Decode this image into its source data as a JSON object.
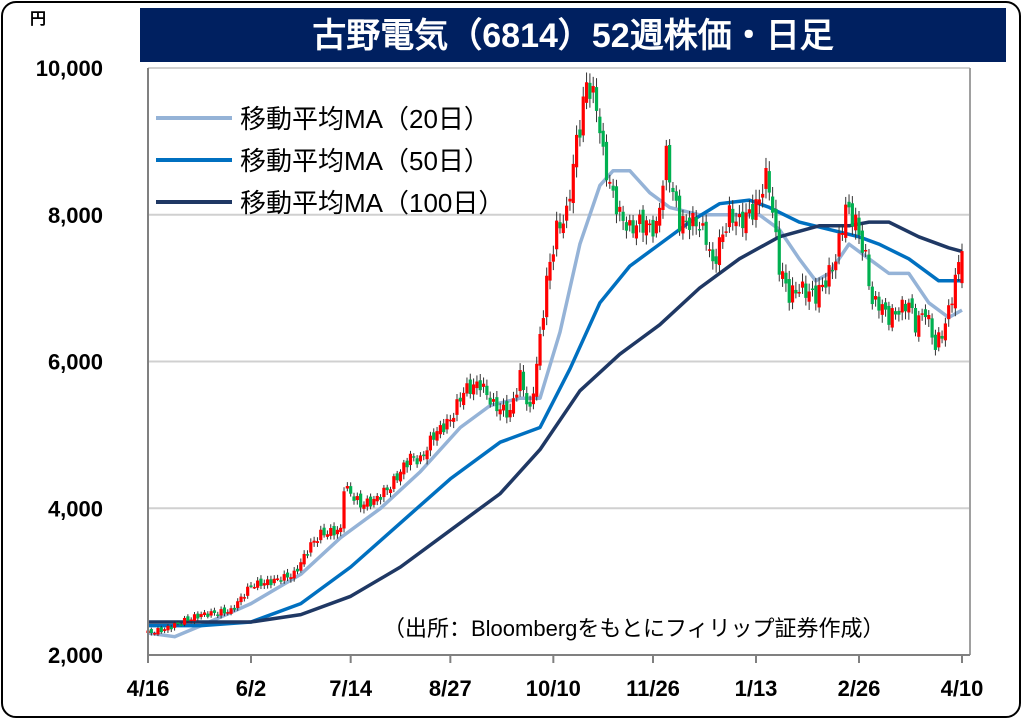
{
  "chart_data": {
    "type": "candlestick",
    "title": "古野電気（6814）52週株価・日足",
    "ylabel": "円",
    "ylim": [
      2000,
      10000
    ],
    "yticks": [
      2000,
      4000,
      6000,
      8000,
      10000
    ],
    "ytick_labels": [
      "2,000",
      "4,000",
      "6,000",
      "8,000",
      "10,000"
    ],
    "x_unit": "trading day index",
    "xlim": [
      0,
      245
    ],
    "xticks": [
      {
        "day": 0,
        "label": "4/16"
      },
      {
        "day": 31,
        "label": "6/2"
      },
      {
        "day": 61,
        "label": "7/14"
      },
      {
        "day": 91,
        "label": "8/27"
      },
      {
        "day": 122,
        "label": "10/10"
      },
      {
        "day": 152,
        "label": "11/26"
      },
      {
        "day": 183,
        "label": "1/13"
      },
      {
        "day": 214,
        "label": "2/26"
      },
      {
        "day": 245,
        "label": "4/10"
      }
    ],
    "grid": "horizontal",
    "legend_position": "top-left",
    "up_color": "#ff0000",
    "down_color": "#00b050",
    "price_close_keypoints": [
      [
        0,
        2300
      ],
      [
        5,
        2350
      ],
      [
        10,
        2450
      ],
      [
        16,
        2550
      ],
      [
        25,
        2600
      ],
      [
        31,
        2950
      ],
      [
        37,
        3000
      ],
      [
        44,
        3100
      ],
      [
        49,
        3500
      ],
      [
        52,
        3650
      ],
      [
        58,
        3700
      ],
      [
        59,
        4300
      ],
      [
        64,
        4050
      ],
      [
        68,
        4100
      ],
      [
        73,
        4300
      ],
      [
        79,
        4700
      ],
      [
        82,
        4650
      ],
      [
        86,
        5000
      ],
      [
        91,
        5200
      ],
      [
        95,
        5600
      ],
      [
        100,
        5700
      ],
      [
        104,
        5400
      ],
      [
        109,
        5300
      ],
      [
        112,
        5800
      ],
      [
        115,
        5300
      ],
      [
        118,
        6300
      ],
      [
        120,
        7100
      ],
      [
        123,
        7800
      ],
      [
        126,
        8000
      ],
      [
        129,
        9000
      ],
      [
        130,
        9200
      ],
      [
        132,
        9800
      ],
      [
        135,
        9500
      ],
      [
        137,
        8800
      ],
      [
        139,
        8400
      ],
      [
        142,
        8000
      ],
      [
        145,
        7800
      ],
      [
        148,
        7900
      ],
      [
        153,
        7800
      ],
      [
        156,
        8800
      ],
      [
        158,
        8300
      ],
      [
        160,
        7900
      ],
      [
        165,
        7900
      ],
      [
        168,
        7700
      ],
      [
        170,
        7300
      ],
      [
        172,
        7600
      ],
      [
        175,
        8000
      ],
      [
        178,
        7900
      ],
      [
        183,
        8100
      ],
      [
        186,
        8500
      ],
      [
        187,
        8400
      ],
      [
        190,
        7300
      ],
      [
        193,
        6900
      ],
      [
        196,
        7000
      ],
      [
        201,
        6900
      ],
      [
        204,
        7100
      ],
      [
        207,
        7400
      ],
      [
        210,
        8100
      ],
      [
        213,
        7900
      ],
      [
        216,
        7400
      ],
      [
        218,
        6800
      ],
      [
        220,
        6800
      ],
      [
        223,
        6600
      ],
      [
        226,
        6700
      ],
      [
        229,
        6800
      ],
      [
        231,
        6500
      ],
      [
        234,
        6700
      ],
      [
        237,
        6200
      ],
      [
        240,
        6500
      ],
      [
        243,
        7100
      ],
      [
        245,
        7600
      ]
    ],
    "series": [
      {
        "name": "移動平均MA（20日）",
        "color": "#95b3d7",
        "points": [
          [
            0,
            2300
          ],
          [
            8,
            2250
          ],
          [
            16,
            2400
          ],
          [
            31,
            2700
          ],
          [
            46,
            3100
          ],
          [
            58,
            3600
          ],
          [
            70,
            4000
          ],
          [
            82,
            4500
          ],
          [
            94,
            5100
          ],
          [
            103,
            5400
          ],
          [
            112,
            5500
          ],
          [
            118,
            5500
          ],
          [
            124,
            6400
          ],
          [
            130,
            7600
          ],
          [
            136,
            8400
          ],
          [
            140,
            8600
          ],
          [
            145,
            8600
          ],
          [
            151,
            8300
          ],
          [
            157,
            8100
          ],
          [
            166,
            8000
          ],
          [
            175,
            8000
          ],
          [
            184,
            8000
          ],
          [
            190,
            7800
          ],
          [
            196,
            7400
          ],
          [
            201,
            7100
          ],
          [
            205,
            7200
          ],
          [
            211,
            7600
          ],
          [
            217,
            7400
          ],
          [
            223,
            7200
          ],
          [
            229,
            7200
          ],
          [
            235,
            6800
          ],
          [
            241,
            6600
          ],
          [
            245,
            6700
          ]
        ]
      },
      {
        "name": "移動平均MA（50日）",
        "color": "#0070c0",
        "points": [
          [
            0,
            2400
          ],
          [
            16,
            2400
          ],
          [
            31,
            2450
          ],
          [
            46,
            2700
          ],
          [
            61,
            3200
          ],
          [
            76,
            3800
          ],
          [
            91,
            4400
          ],
          [
            106,
            4900
          ],
          [
            118,
            5100
          ],
          [
            127,
            5900
          ],
          [
            136,
            6800
          ],
          [
            145,
            7300
          ],
          [
            154,
            7600
          ],
          [
            163,
            7900
          ],
          [
            172,
            8150
          ],
          [
            181,
            8200
          ],
          [
            187,
            8100
          ],
          [
            196,
            7900
          ],
          [
            205,
            7800
          ],
          [
            214,
            7700
          ],
          [
            220,
            7600
          ],
          [
            229,
            7400
          ],
          [
            238,
            7100
          ],
          [
            245,
            7100
          ]
        ]
      },
      {
        "name": "移動平均MA（100日）",
        "color": "#1f3864",
        "points": [
          [
            0,
            2450
          ],
          [
            31,
            2450
          ],
          [
            46,
            2550
          ],
          [
            61,
            2800
          ],
          [
            76,
            3200
          ],
          [
            91,
            3700
          ],
          [
            106,
            4200
          ],
          [
            118,
            4800
          ],
          [
            130,
            5600
          ],
          [
            142,
            6100
          ],
          [
            154,
            6500
          ],
          [
            166,
            7000
          ],
          [
            178,
            7400
          ],
          [
            190,
            7700
          ],
          [
            202,
            7850
          ],
          [
            211,
            7850
          ],
          [
            217,
            7900
          ],
          [
            223,
            7900
          ],
          [
            232,
            7700
          ],
          [
            241,
            7550
          ],
          [
            245,
            7500
          ]
        ]
      }
    ]
  },
  "source_note": "（出所：Bloombergをもとにフィリップ証券作成）"
}
